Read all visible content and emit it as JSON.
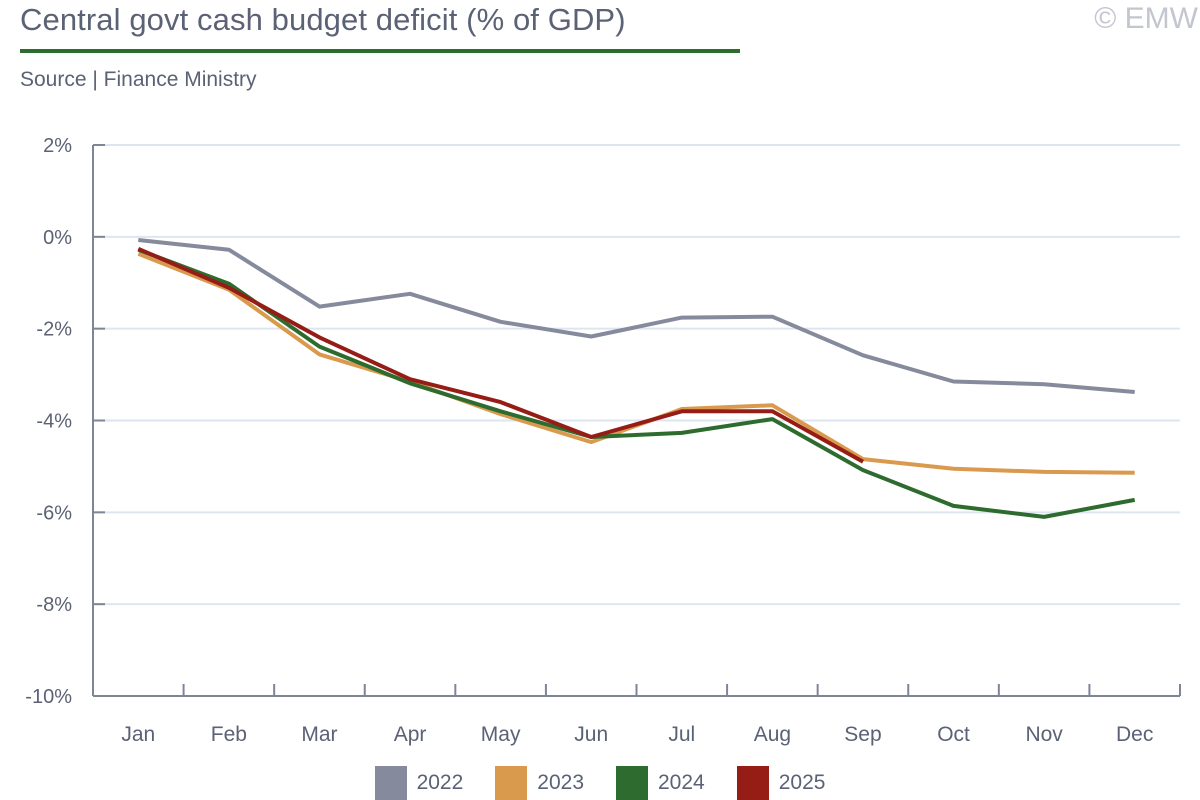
{
  "header": {
    "title": "Central govt cash budget deficit (% of GDP)",
    "subtitle": "Source | Finance Ministry",
    "copyright": "© EMW",
    "accent_color": "#2e6b2e"
  },
  "chart_data": {
    "type": "line",
    "title": "Central govt cash budget deficit (% of GDP)",
    "xlabel": "",
    "ylabel": "",
    "categories": [
      "Jan",
      "Feb",
      "Mar",
      "Apr",
      "May",
      "Jun",
      "Jul",
      "Aug",
      "Sep",
      "Oct",
      "Nov",
      "Dec"
    ],
    "ylim": [
      -10,
      2
    ],
    "yticks": [
      2,
      0,
      -2,
      -4,
      -6,
      -8,
      -10
    ],
    "ytick_labels": [
      "2%",
      "0%",
      "-2%",
      "-4%",
      "-6%",
      "-8%",
      "-10%"
    ],
    "grid": true,
    "legend_position": "bottom-center",
    "series": [
      {
        "name": "2022",
        "color": "#858a9c",
        "values": [
          -0.07,
          -0.28,
          -1.52,
          -1.24,
          -1.85,
          -2.17,
          -1.76,
          -1.74,
          -2.58,
          -3.15,
          -3.21,
          -3.38
        ]
      },
      {
        "name": "2023",
        "color": "#d99a4e",
        "values": [
          -0.37,
          -1.15,
          -2.56,
          -3.15,
          -3.86,
          -4.47,
          -3.75,
          -3.67,
          -4.84,
          -5.05,
          -5.12,
          -5.14
        ]
      },
      {
        "name": "2024",
        "color": "#2e6b2e",
        "values": [
          -0.28,
          -1.02,
          -2.39,
          -3.19,
          -3.8,
          -4.36,
          -4.27,
          -3.97,
          -5.08,
          -5.86,
          -6.1,
          -5.73
        ]
      },
      {
        "name": "2025",
        "color": "#951d16",
        "values": [
          -0.26,
          -1.11,
          -2.19,
          -3.1,
          -3.6,
          -4.36,
          -3.8,
          -3.8,
          -4.9
        ]
      }
    ]
  }
}
